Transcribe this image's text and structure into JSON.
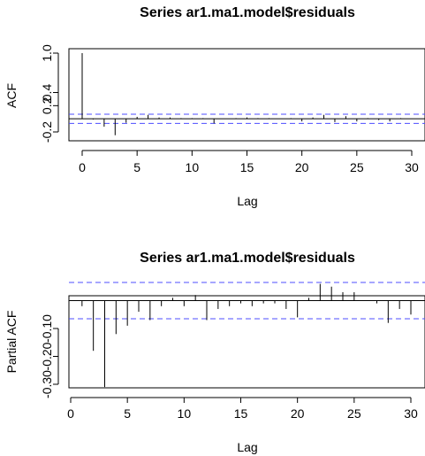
{
  "chart_data": [
    {
      "type": "bar",
      "title": "Series  ar1.ma1.model$residuals",
      "xlabel": "Lag",
      "ylabel": "ACF",
      "xlim": [
        0,
        30
      ],
      "ylim": [
        -0.32,
        1.0
      ],
      "xticks": [
        0,
        5,
        10,
        15,
        20,
        25,
        30
      ],
      "xtick_labels": [
        "0",
        "5",
        "10",
        "15",
        "20",
        "25",
        "30"
      ],
      "yticks": [
        -0.2,
        0.2,
        0.4,
        1.0
      ],
      "ytick_labels": [
        "-0.2",
        "0.2",
        "0.4",
        "1.0"
      ],
      "ci": 0.07,
      "lags": [
        0,
        1,
        2,
        3,
        4,
        5,
        6,
        7,
        8,
        9,
        10,
        11,
        12,
        13,
        14,
        15,
        16,
        17,
        18,
        19,
        20,
        21,
        22,
        23,
        24,
        25,
        26,
        27,
        28,
        29,
        30
      ],
      "values": [
        1.0,
        -0.01,
        -0.12,
        -0.25,
        -0.06,
        0.03,
        0.06,
        0.02,
        0.02,
        0.01,
        0.01,
        0.01,
        -0.07,
        0.0,
        0.01,
        0.02,
        0.01,
        0.01,
        0.0,
        0.01,
        -0.04,
        0.02,
        0.06,
        -0.05,
        0.04,
        -0.04,
        0.01,
        -0.02,
        -0.04,
        0.01,
        0.0
      ],
      "grid": false
    },
    {
      "type": "bar",
      "title": "Series  ar1.ma1.model$residuals",
      "xlabel": "Lag",
      "ylabel": "Partial ACF",
      "xlim": [
        0,
        30
      ],
      "ylim": [
        -0.33,
        0.08
      ],
      "xticks": [
        0,
        5,
        10,
        15,
        20,
        25,
        30
      ],
      "xtick_labels": [
        "0",
        "5",
        "10",
        "15",
        "20",
        "25",
        "30"
      ],
      "yticks": [
        -0.3,
        -0.2,
        -0.1
      ],
      "ytick_labels": [
        "-0.30",
        "-0.20",
        "-0.10"
      ],
      "ci": 0.065,
      "lags": [
        1,
        2,
        3,
        4,
        5,
        6,
        7,
        8,
        9,
        10,
        11,
        12,
        13,
        14,
        15,
        16,
        17,
        18,
        19,
        20,
        21,
        22,
        23,
        24,
        25,
        26,
        27,
        28,
        29,
        30
      ],
      "values": [
        -0.02,
        -0.18,
        -0.31,
        -0.12,
        -0.09,
        -0.04,
        -0.07,
        -0.02,
        0.01,
        -0.02,
        0.02,
        -0.07,
        -0.03,
        -0.02,
        -0.01,
        -0.02,
        -0.01,
        -0.01,
        -0.03,
        -0.06,
        0.01,
        0.06,
        0.05,
        0.03,
        0.03,
        0.0,
        -0.01,
        -0.08,
        -0.03,
        -0.05
      ],
      "grid": false
    }
  ]
}
